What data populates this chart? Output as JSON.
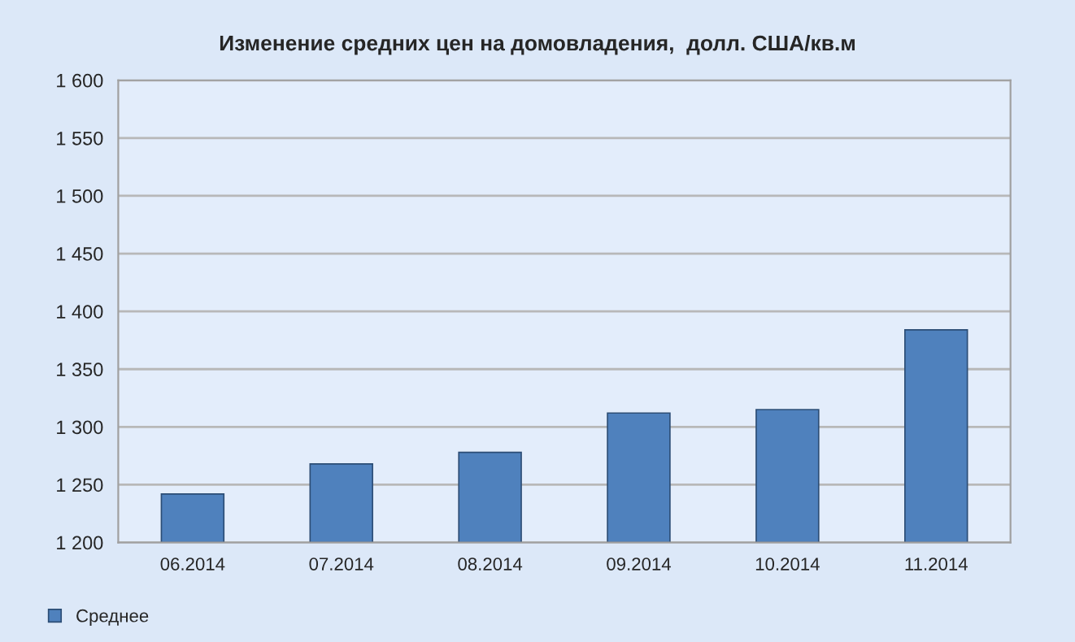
{
  "chart_data": {
    "type": "bar",
    "title": "Изменение средних цен на домовладения,  долл. США/кв.м",
    "categories": [
      "06.2014",
      "07.2014",
      "08.2014",
      "09.2014",
      "10.2014",
      "11.2014"
    ],
    "series": [
      {
        "name": "Среднее",
        "color": "#4f81bd",
        "values": [
          1242,
          1268,
          1278,
          1312,
          1315,
          1384
        ]
      }
    ],
    "ylim": [
      1200,
      1600
    ],
    "yticks": [
      {
        "value": 1200,
        "label": "1 200"
      },
      {
        "value": 1250,
        "label": "1 250"
      },
      {
        "value": 1300,
        "label": "1 300"
      },
      {
        "value": 1350,
        "label": "1 350"
      },
      {
        "value": 1400,
        "label": "1 400"
      },
      {
        "value": 1450,
        "label": "1 450"
      },
      {
        "value": 1500,
        "label": "1 500"
      },
      {
        "value": 1550,
        "label": "1 550"
      },
      {
        "value": 1600,
        "label": "1 600"
      }
    ],
    "grid": "y",
    "legend": "bottom left"
  }
}
